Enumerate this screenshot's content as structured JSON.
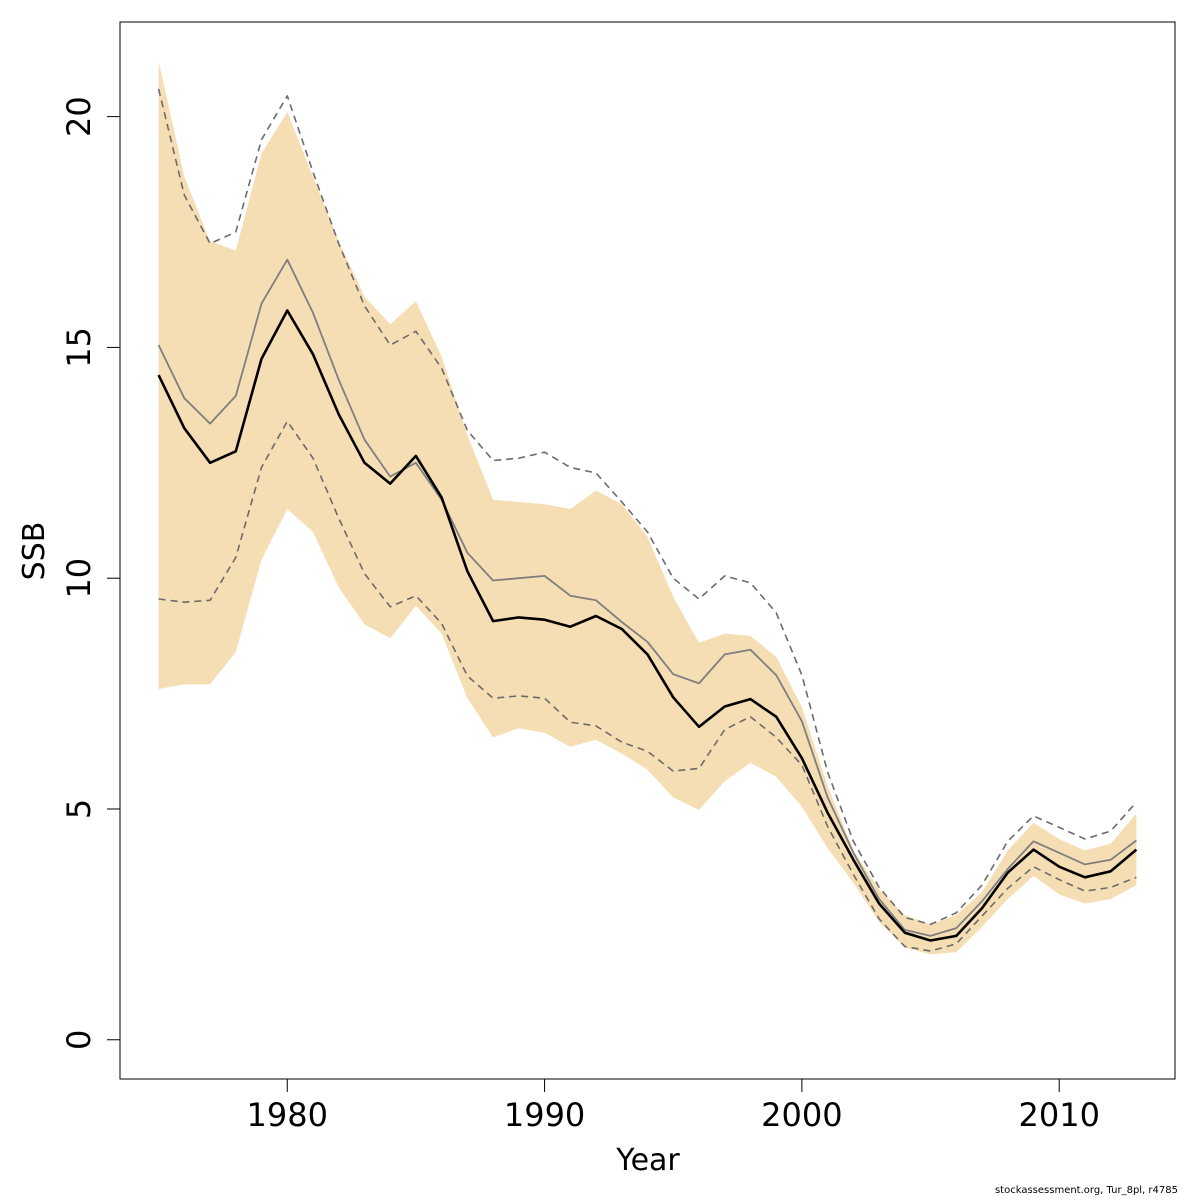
{
  "chart_data": {
    "type": "line",
    "xlabel": "Year",
    "ylabel": "SSB",
    "xlim": [
      1973.5,
      2014.5
    ],
    "ylim": [
      -0.85,
      22.05
    ],
    "x_ticks": [
      1980,
      1990,
      2000,
      2010
    ],
    "y_ticks": [
      0,
      5,
      10,
      15,
      20
    ],
    "x": [
      1975,
      1976,
      1977,
      1978,
      1979,
      1980,
      1981,
      1982,
      1983,
      1984,
      1985,
      1986,
      1987,
      1988,
      1989,
      1990,
      1991,
      1992,
      1993,
      1994,
      1995,
      1996,
      1997,
      1998,
      1999,
      2000,
      2001,
      2002,
      2003,
      2004,
      2005,
      2006,
      2007,
      2008,
      2009,
      2010,
      2011,
      2012,
      2013
    ],
    "series": [
      {
        "role": "band-upper",
        "color": "#f5deb3",
        "values": [
          21.2,
          18.7,
          17.3,
          17.1,
          19.2,
          20.1,
          18.7,
          17.3,
          16.1,
          15.5,
          16.0,
          14.8,
          13.1,
          11.7,
          11.65,
          11.6,
          11.5,
          11.9,
          11.6,
          10.9,
          9.6,
          8.6,
          8.8,
          8.75,
          8.3,
          7.2,
          5.5,
          4.1,
          3.25,
          2.7,
          2.5,
          2.7,
          3.2,
          4.1,
          4.7,
          4.35,
          4.1,
          4.25,
          4.9
        ]
      },
      {
        "role": "band-lower",
        "color": "#f5deb3",
        "values": [
          7.6,
          7.7,
          7.7,
          8.4,
          10.4,
          11.5,
          11.0,
          9.8,
          9.0,
          8.7,
          9.4,
          8.8,
          7.4,
          6.55,
          6.75,
          6.65,
          6.35,
          6.5,
          6.2,
          5.85,
          5.25,
          4.98,
          5.6,
          6.0,
          5.7,
          5.05,
          4.15,
          3.4,
          2.55,
          2.0,
          1.85,
          1.9,
          2.45,
          3.05,
          3.55,
          3.15,
          2.95,
          3.05,
          3.35
        ]
      },
      {
        "role": "estimate",
        "color": "#000000",
        "values": [
          14.4,
          13.25,
          12.5,
          12.75,
          14.75,
          15.8,
          14.85,
          13.55,
          12.5,
          12.05,
          12.65,
          11.75,
          10.15,
          9.07,
          9.15,
          9.1,
          8.95,
          9.18,
          8.9,
          8.35,
          7.42,
          6.78,
          7.22,
          7.38,
          7.0,
          6.1,
          4.92,
          3.9,
          2.95,
          2.32,
          2.15,
          2.25,
          2.85,
          3.62,
          4.12,
          3.75,
          3.52,
          3.65,
          4.12
        ]
      },
      {
        "role": "comparison",
        "color": "#7f7f7f",
        "values": [
          15.05,
          13.9,
          13.35,
          13.95,
          15.95,
          16.9,
          15.75,
          14.3,
          13.0,
          12.2,
          12.5,
          11.7,
          10.55,
          9.95,
          10.0,
          10.05,
          9.62,
          9.52,
          9.05,
          8.62,
          7.92,
          7.72,
          8.35,
          8.45,
          7.9,
          6.9,
          5.25,
          4.05,
          3.05,
          2.38,
          2.25,
          2.42,
          3.0,
          3.7,
          4.3,
          4.05,
          3.8,
          3.9,
          4.32
        ]
      },
      {
        "role": "comparison-upper",
        "color": "#6b6b6b",
        "dashed": true,
        "values": [
          20.6,
          18.3,
          17.25,
          17.5,
          19.5,
          20.45,
          18.8,
          17.25,
          15.9,
          15.05,
          15.35,
          14.55,
          13.2,
          12.55,
          12.6,
          12.73,
          12.4,
          12.28,
          11.65,
          11.0,
          10.0,
          9.55,
          10.05,
          9.9,
          9.25,
          7.9,
          5.8,
          4.3,
          3.3,
          2.65,
          2.5,
          2.75,
          3.35,
          4.3,
          4.85,
          4.6,
          4.35,
          4.52,
          5.15
        ]
      },
      {
        "role": "comparison-lower",
        "color": "#6b6b6b",
        "dashed": true,
        "values": [
          9.55,
          9.48,
          9.52,
          10.45,
          12.4,
          13.4,
          12.6,
          11.3,
          10.1,
          9.38,
          9.62,
          9.02,
          7.88,
          7.4,
          7.45,
          7.4,
          6.88,
          6.8,
          6.45,
          6.25,
          5.82,
          5.88,
          6.72,
          7.0,
          6.55,
          5.95,
          4.62,
          3.58,
          2.62,
          2.02,
          1.92,
          2.08,
          2.68,
          3.28,
          3.75,
          3.47,
          3.22,
          3.3,
          3.52
        ]
      }
    ]
  },
  "footer": "stockassessment.org, Tur_8pl, r4785"
}
